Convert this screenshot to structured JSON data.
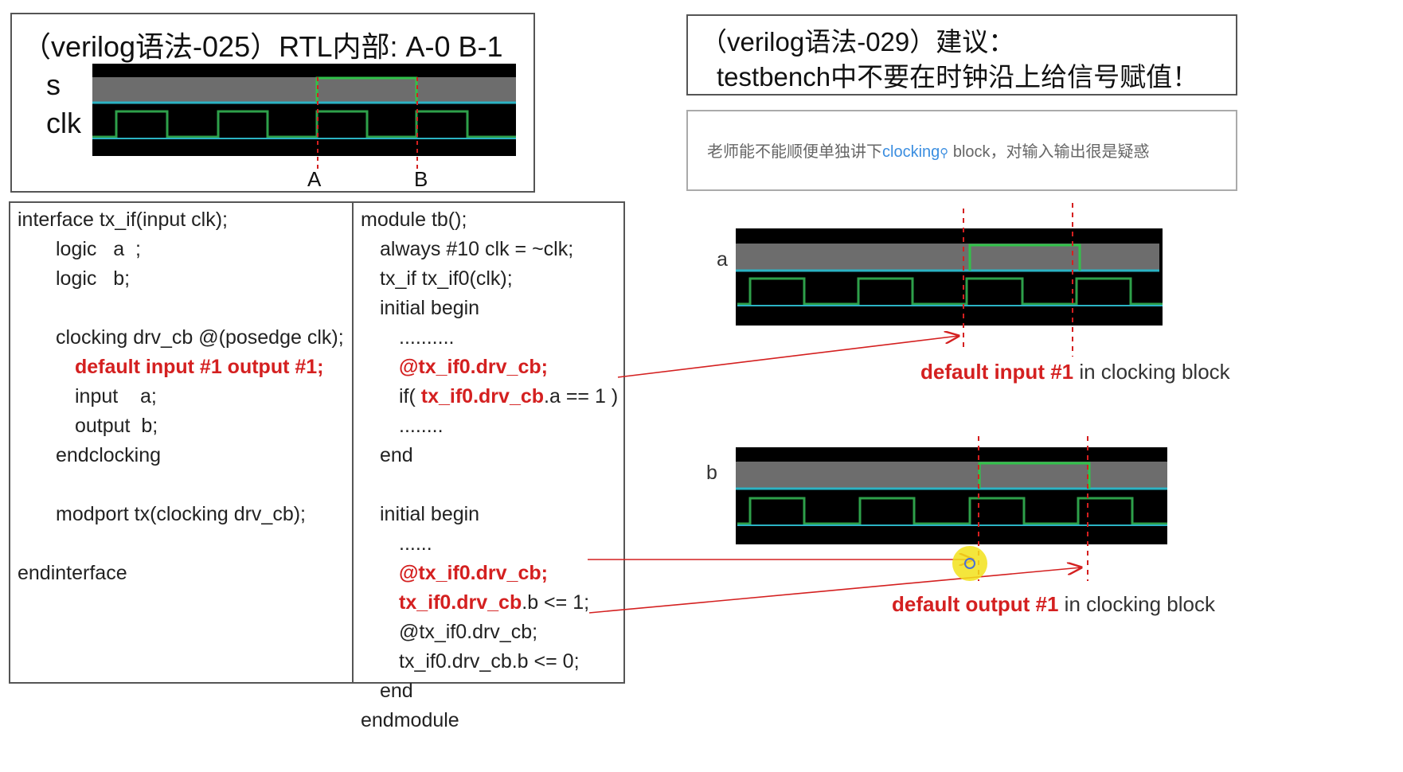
{
  "top_left": {
    "title": "（verilog语法-025）RTL内部: A-0  B-1",
    "signal_s": "s",
    "signal_clk": "clk",
    "marker_a": "A",
    "marker_b": "B"
  },
  "top_right": {
    "line1": "（verilog语法-029）建议：",
    "line2": "testbench中不要在时钟沿上给信号赋值！"
  },
  "comment": {
    "prefix": "老师能不能顺便单独讲下",
    "link": "clocking",
    "suffix": " block，对输入输出很是疑惑"
  },
  "interface_code": [
    {
      "text": "interface tx_if(input clk);",
      "indent": 0,
      "red": false
    },
    {
      "text": "logic   a  ;",
      "indent": 2,
      "red": false
    },
    {
      "text": "logic   b;",
      "indent": 2,
      "red": false
    },
    {
      "text": "",
      "indent": 0,
      "red": false
    },
    {
      "text": "clocking drv_cb @(posedge clk);",
      "indent": 2,
      "red": false
    },
    {
      "text": "default input #1 output #1;",
      "indent": 3,
      "red": true
    },
    {
      "text": "input    a;",
      "indent": 3,
      "red": false
    },
    {
      "text": "output  b;",
      "indent": 3,
      "red": false
    },
    {
      "text": "endclocking",
      "indent": 2,
      "red": false
    },
    {
      "text": "",
      "indent": 0,
      "red": false
    },
    {
      "text": "modport tx(clocking drv_cb);",
      "indent": 2,
      "red": false
    },
    {
      "text": "",
      "indent": 0,
      "red": false
    },
    {
      "text": "endinterface",
      "indent": 0,
      "red": false
    }
  ],
  "module_code": [
    {
      "text": "module tb();",
      "indent": 0,
      "red": false
    },
    {
      "text": "always #10 clk = ~clk;",
      "indent": 1,
      "red": false
    },
    {
      "text": "tx_if tx_if0(clk);",
      "indent": 1,
      "red": false
    },
    {
      "text": "initial begin",
      "indent": 1,
      "red": false
    },
    {
      "text": "..........",
      "indent": 2,
      "red": false
    },
    {
      "text": "@tx_if0.drv_cb;",
      "indent": 2,
      "red": true
    },
    {
      "text": "if( tx_if0.drv_cb.a == 1 )",
      "indent": 2,
      "red": false
    },
    {
      "text": "........",
      "indent": 2,
      "red": false
    },
    {
      "text": "end",
      "indent": 1,
      "red": false
    },
    {
      "text": "",
      "indent": 0,
      "red": false
    },
    {
      "text": "initial begin",
      "indent": 1,
      "red": false
    },
    {
      "text": "......",
      "indent": 2,
      "red": false
    },
    {
      "text": "@tx_if0.drv_cb;",
      "indent": 2,
      "red": true
    },
    {
      "text": "tx_if0.drv_cb.b <= 1;",
      "indent": 2,
      "red": false
    },
    {
      "text": "@tx_if0.drv_cb;",
      "indent": 2,
      "red": false
    },
    {
      "text": "tx_if0.drv_cb.b <= 0;",
      "indent": 2,
      "red": false
    },
    {
      "text": "end",
      "indent": 1,
      "red": false
    },
    {
      "text": "endmodule",
      "indent": 0,
      "red": false
    }
  ],
  "wave_a": {
    "label": "a",
    "caption_bold": "default input #1",
    "caption_rest": " in clocking block"
  },
  "wave_b": {
    "label": "b",
    "caption_bold": "default  output #1",
    "caption_rest": " in clocking block"
  },
  "colors": {
    "clock": "#2ea04a",
    "signal_high": "#31c24a",
    "bus_line": "#2bb3c4",
    "marker": "#d42020",
    "wave_bg": "#000000",
    "wave_gray": "#6d6d6d",
    "highlight": "#f2e21a"
  }
}
